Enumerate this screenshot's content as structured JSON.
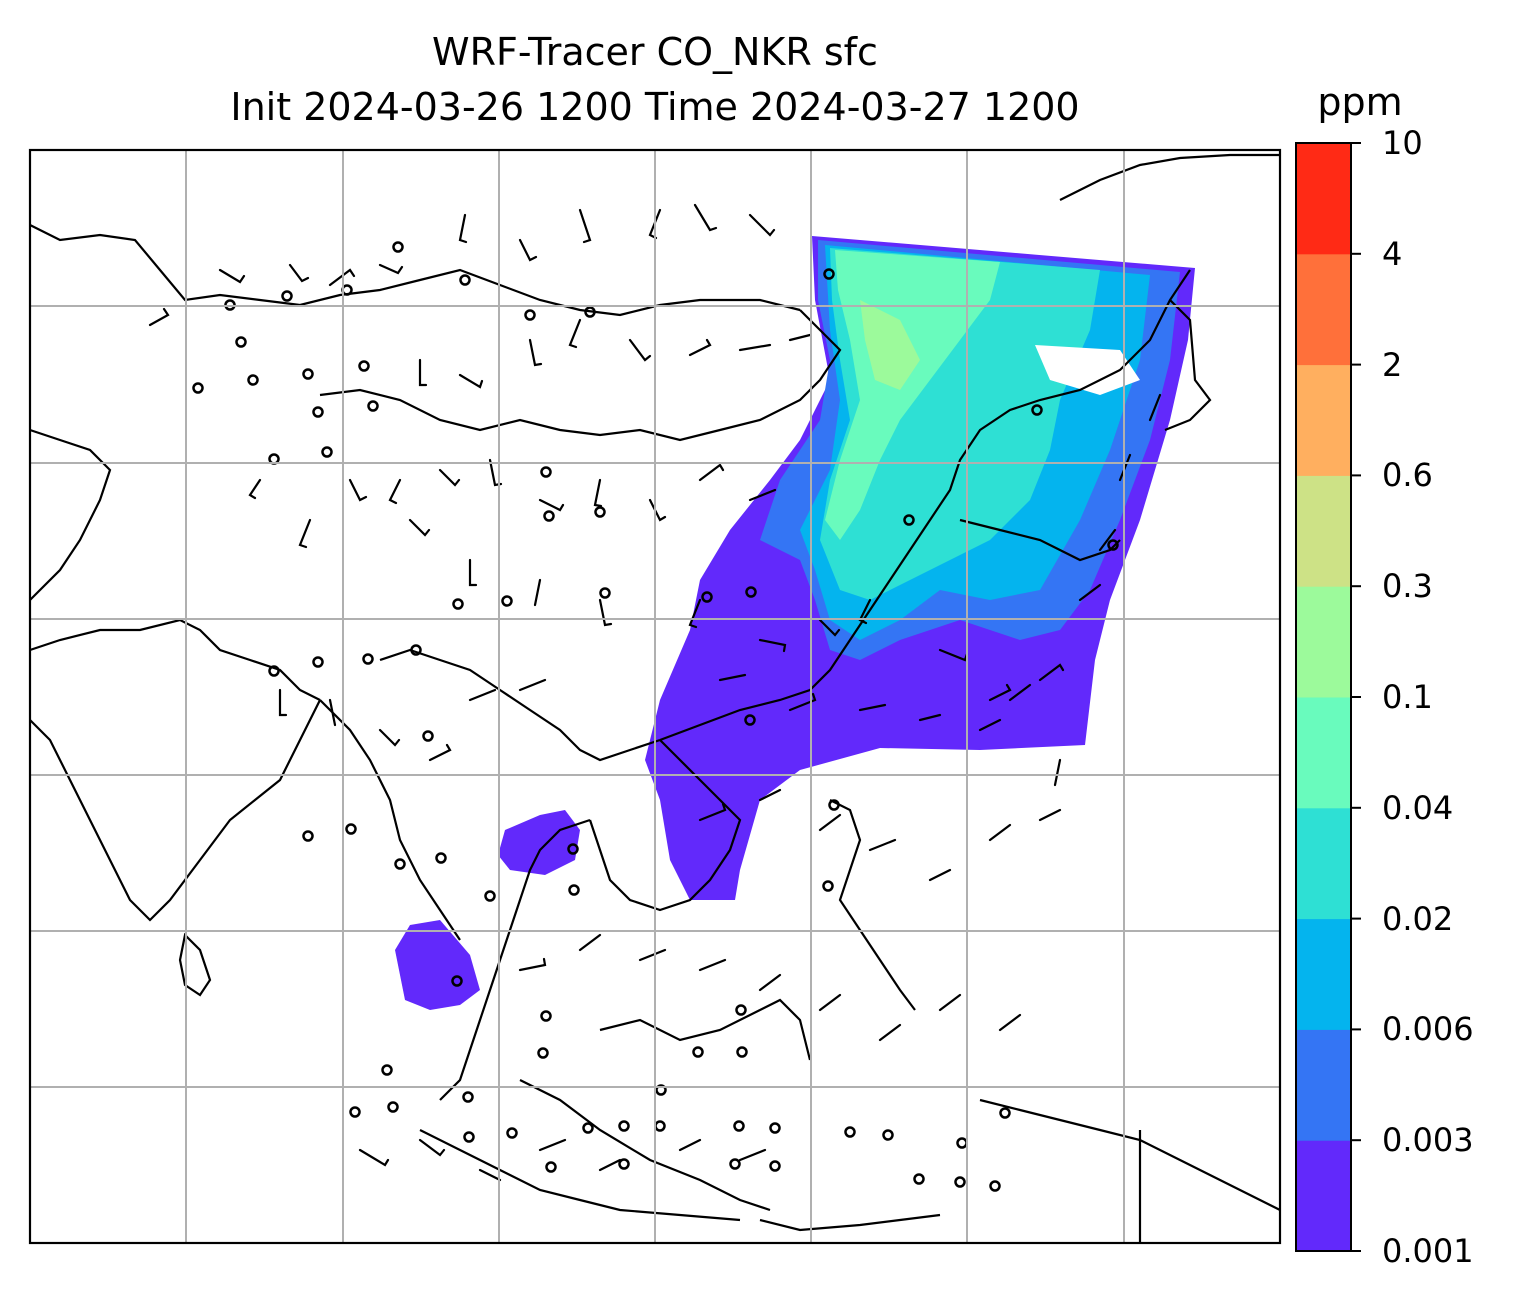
{
  "title_line1": "WRF-Tracer CO_NKR sfc",
  "title_line2": "Init 2024-03-26 1200 Time 2024-03-27 1200",
  "colorbar": {
    "unit": "ppm",
    "levels": [
      "0.001",
      "0.003",
      "0.006",
      "0.02",
      "0.04",
      "0.1",
      "0.3",
      "0.6",
      "2",
      "4",
      "10"
    ],
    "colors": [
      "#6229fb",
      "#3475f4",
      "#04b4ee",
      "#2ee0d4",
      "#69fbbd",
      "#9cfa9b",
      "#cde286",
      "#ffaf5f",
      "#ff703a",
      "#ff2a15"
    ]
  },
  "map": {
    "projection": "lat-lon",
    "gridlines": true,
    "coastlines": true,
    "wind_barbs": true,
    "region": "Asia / Maritime Southeast Asia"
  }
}
